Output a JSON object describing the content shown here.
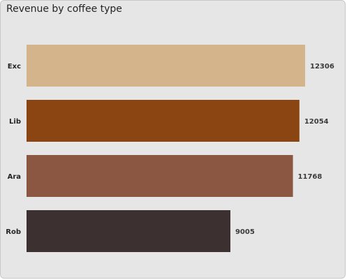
{
  "chart_data": {
    "type": "bar",
    "orientation": "horizontal",
    "title": "Revenue by coffee type",
    "xlabel": "",
    "ylabel": "",
    "categories": [
      "Exc",
      "Lib",
      "Ara",
      "Rob"
    ],
    "values": [
      12306,
      12054,
      11768,
      9005
    ],
    "bar_colors": [
      "#d3b48b",
      "#8b4513",
      "#8b5742",
      "#3c3030"
    ],
    "xlim": [
      0,
      12306
    ],
    "grid": false,
    "legend": "none"
  }
}
